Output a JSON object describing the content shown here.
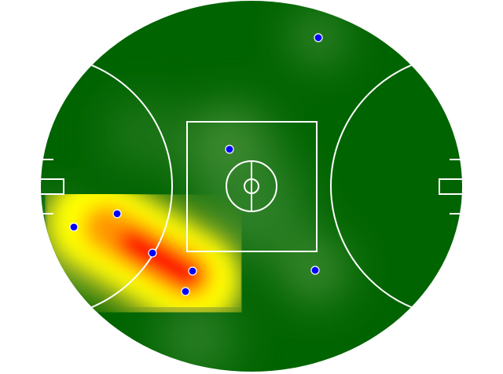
{
  "colors": {
    "field_base": "#006400",
    "field_light": "#5a9a4a",
    "heat_low": "#ffff00",
    "heat_mid": "#ff8800",
    "heat_high": "#ff0000",
    "lines": "#ffffff",
    "points": "#0000ff"
  },
  "legend": {},
  "point_count": 8
}
